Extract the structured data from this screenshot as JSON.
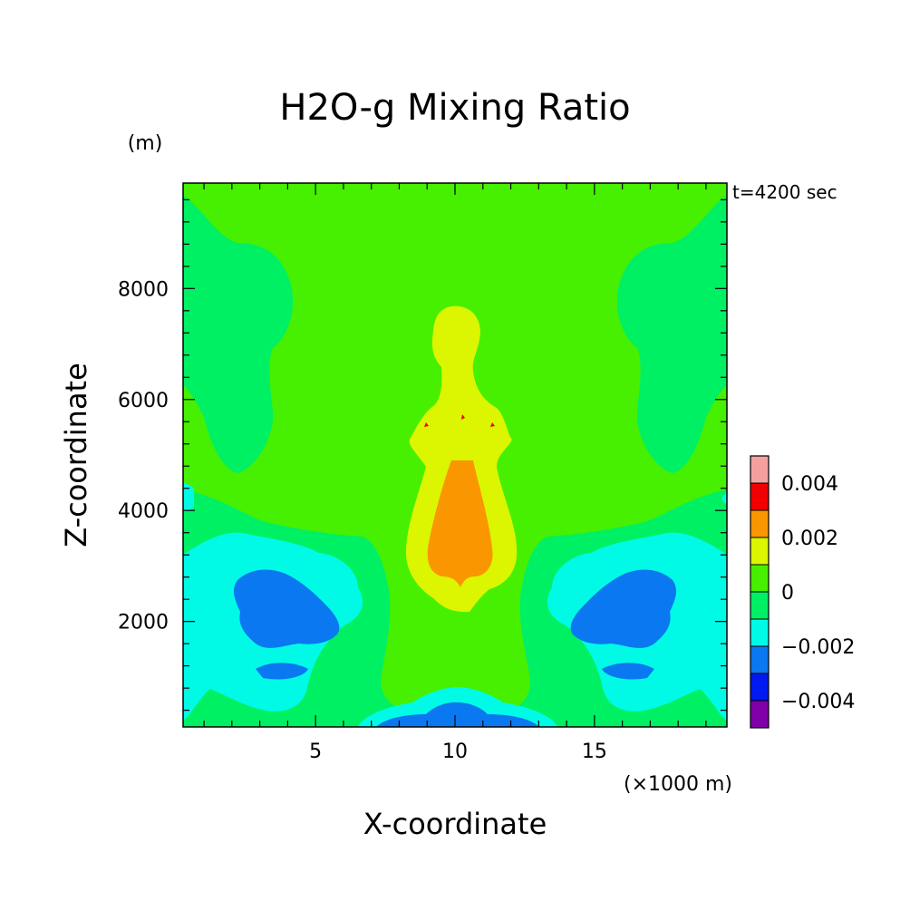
{
  "chart_data": {
    "type": "heatmap",
    "title": "H2O-g Mixing Ratio",
    "xlabel": "X-coordinate",
    "ylabel": "Z-coordinate",
    "x_unit": "(×1000 m)",
    "y_unit": "(m)",
    "time_label": "t=4200 sec",
    "xlim": [
      0.25,
      19.75
    ],
    "ylim": [
      100,
      9900
    ],
    "x_ticks": [
      5,
      10,
      15
    ],
    "y_ticks": [
      2000,
      4000,
      6000,
      8000
    ],
    "x_tick_labels": [
      "5",
      "10",
      "15"
    ],
    "y_tick_labels": [
      "2000",
      "4000",
      "6000",
      "8000"
    ],
    "colorbar": {
      "levels": [
        -0.005,
        -0.004,
        -0.003,
        -0.002,
        -0.001,
        0,
        0.001,
        0.002,
        0.003,
        0.004,
        0.005
      ],
      "colors": [
        "#7f00a8",
        "#0019f0",
        "#0a78f0",
        "#00fae6",
        "#00f064",
        "#46f000",
        "#dcf500",
        "#fa9600",
        "#f00000",
        "#f5a0a0"
      ],
      "tick_values": [
        -0.004,
        -0.002,
        0,
        0.002,
        0.004
      ],
      "tick_labels": [
        "−0.004",
        "−0.002",
        "0",
        "0.002",
        "0.004"
      ]
    }
  }
}
